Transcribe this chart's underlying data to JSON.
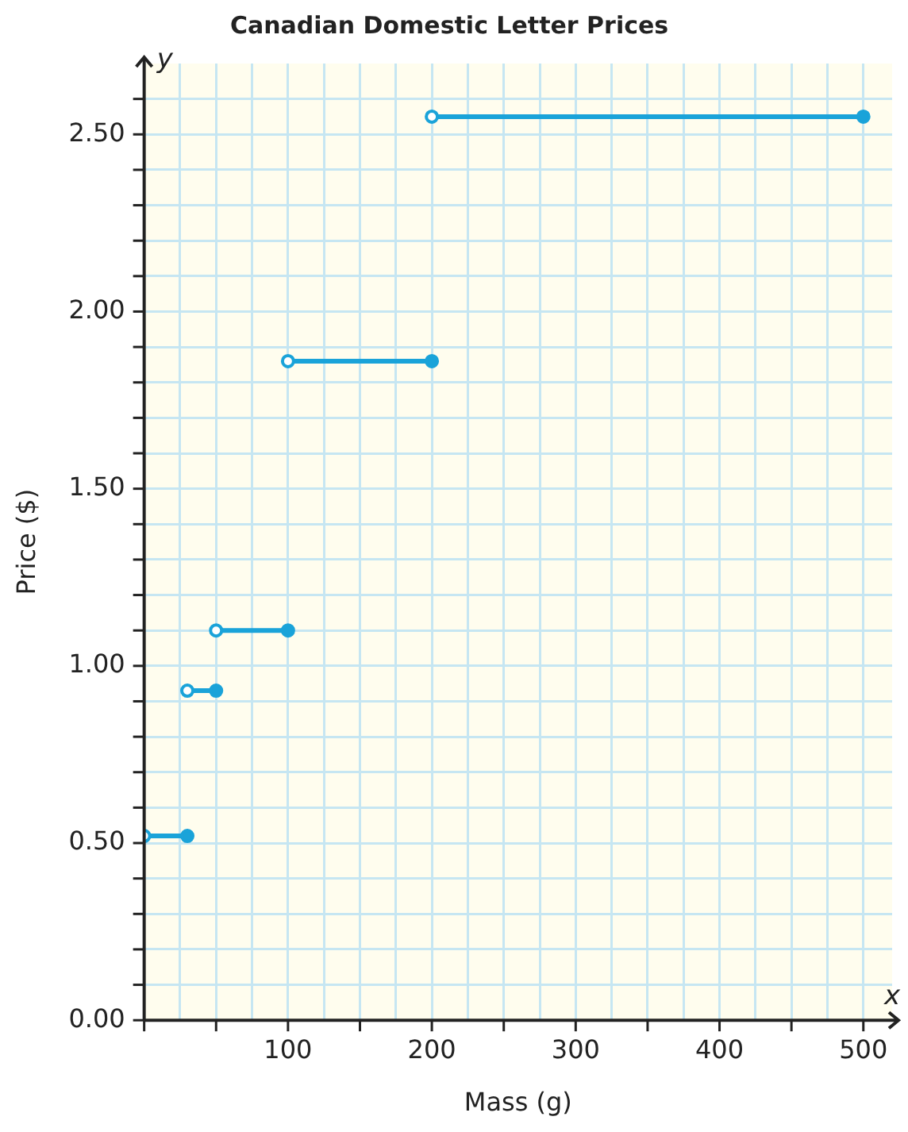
{
  "chart_data": {
    "type": "line",
    "title": "Canadian Domestic Letter Prices",
    "xlabel": "Mass (g)",
    "ylabel": "Price ($)",
    "annotations": [
      "x",
      "y"
    ],
    "xlim": [
      0,
      520
    ],
    "ylim": [
      0,
      2.7
    ],
    "xticks": [
      {
        "value": 0,
        "label": null
      },
      {
        "value": 25,
        "label": null
      },
      {
        "value": 50,
        "label": null
      },
      {
        "value": 75,
        "label": null
      },
      100,
      {
        "value": 125,
        "label": null
      },
      {
        "value": 150,
        "label": null
      },
      {
        "value": 175,
        "label": null
      },
      200,
      {
        "value": 225,
        "label": null
      },
      {
        "value": 250,
        "label": null
      },
      {
        "value": 275,
        "label": null
      },
      300,
      {
        "value": 325,
        "label": null
      },
      {
        "value": 350,
        "label": null
      },
      {
        "value": 375,
        "label": null
      },
      400,
      {
        "value": 425,
        "label": null
      },
      {
        "value": 450,
        "label": null
      },
      {
        "value": 475,
        "label": null
      },
      500
    ],
    "yticks": [
      {
        "value": 0,
        "label": "0.00"
      },
      {
        "value": 0.1,
        "label": null
      },
      {
        "value": 0.2,
        "label": null
      },
      {
        "value": 0.3,
        "label": null
      },
      {
        "value": 0.4,
        "label": null
      },
      {
        "value": 0.5,
        "label": "0.50"
      },
      {
        "value": 0.6,
        "label": null
      },
      {
        "value": 0.7,
        "label": null
      },
      {
        "value": 0.8,
        "label": null
      },
      {
        "value": 0.9,
        "label": null
      },
      {
        "value": 1,
        "label": "1.00"
      },
      {
        "value": 1.1,
        "label": null
      },
      {
        "value": 1.2,
        "label": null
      },
      {
        "value": 1.3,
        "label": null
      },
      {
        "value": 1.4,
        "label": null
      },
      {
        "value": 1.5,
        "label": "1.50"
      },
      {
        "value": 1.6,
        "label": null
      },
      {
        "value": 1.7,
        "label": null
      },
      {
        "value": 1.8,
        "label": null
      },
      {
        "value": 1.9,
        "label": null
      },
      {
        "value": 2,
        "label": "2.00"
      },
      {
        "value": 2.1,
        "label": null
      },
      {
        "value": 2.2,
        "label": null
      },
      {
        "value": 2.3,
        "label": null
      },
      {
        "value": 2.4,
        "label": null
      },
      {
        "value": 2.5,
        "label": "2.50"
      },
      {
        "value": 2.6,
        "label": null
      }
    ],
    "grid": true,
    "legend": false,
    "marker": "circle",
    "line_style": "solid",
    "series": [
      {
        "color": "#1aa3d9",
        "x": [
          0,
          30
        ],
        "values": [
          0.52,
          0.52
        ]
      },
      {
        "color": "#1aa3d9",
        "x": [
          30,
          50
        ],
        "values": [
          0.93,
          0.93
        ]
      },
      {
        "color": "#1aa3d9",
        "x": [
          50,
          100
        ],
        "values": [
          1.1,
          1.1
        ]
      },
      {
        "color": "#1aa3d9",
        "x": [
          100,
          200
        ],
        "values": [
          1.86,
          1.86
        ]
      },
      {
        "color": "#1aa3d9",
        "x": [
          200,
          500
        ],
        "values": [
          2.55,
          2.55
        ]
      }
    ]
  }
}
